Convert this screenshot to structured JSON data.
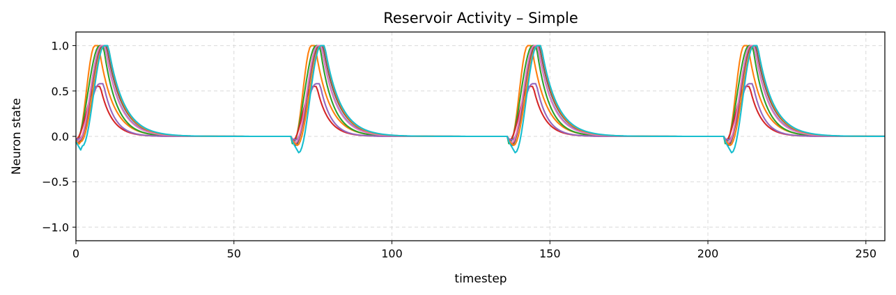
{
  "chart_data": {
    "type": "line",
    "title": "Reservoir Activity – Simple",
    "xlabel": "timestep",
    "ylabel": "Neuron state",
    "xlim": [
      0,
      256
    ],
    "ylim": [
      -1.15,
      1.15
    ],
    "xticks": [
      0,
      50,
      100,
      150,
      200,
      250
    ],
    "yticks": [
      -1.0,
      -0.5,
      0.0,
      0.5,
      1.0
    ],
    "xtick_labels": [
      "0",
      "50",
      "100",
      "150",
      "200",
      "250"
    ],
    "ytick_labels": [
      "−1.0",
      "−0.5",
      "0.0",
      "0.5",
      "1.0"
    ],
    "grid": true,
    "legend": "none",
    "pulse_period": 68.5,
    "series": [
      {
        "color": "#1f77b4",
        "pre_dip": -0.1,
        "rise_start": 1,
        "peak_t": 8.0,
        "peak": 1.0,
        "tau": 4.6
      },
      {
        "color": "#ff7f0e",
        "pre_dip": -0.06,
        "rise_start": 0.5,
        "peak_t": 6.0,
        "peak": 1.0,
        "tau": 4.4
      },
      {
        "color": "#2ca02c",
        "pre_dip": -0.08,
        "rise_start": 0,
        "peak_t": 7.5,
        "peak": 1.0,
        "tau": 4.0
      },
      {
        "color": "#d62728",
        "pre_dip": -0.05,
        "rise_start": 0,
        "peak_t": 6.5,
        "peak": 0.55,
        "tau": 3.6
      },
      {
        "color": "#9467bd",
        "pre_dip": -0.04,
        "rise_start": 1,
        "peak_t": 7.5,
        "peak": 0.58,
        "tau": 3.4
      },
      {
        "color": "#8c564b",
        "pre_dip": -0.09,
        "rise_start": 1,
        "peak_t": 8.5,
        "peak": 1.0,
        "tau": 4.8
      },
      {
        "color": "#e377c2",
        "pre_dip": -0.07,
        "rise_start": 1,
        "peak_t": 8.0,
        "peak": 1.0,
        "tau": 4.5
      },
      {
        "color": "#ff7f0e",
        "pre_dip": -0.1,
        "rise_start": 1.5,
        "peak_t": 9.0,
        "peak": 1.0,
        "tau": 4.7
      },
      {
        "color": "#17becf",
        "pre_dip": -0.18,
        "rise_start": 2,
        "peak_t": 9.0,
        "peak": 1.0,
        "tau": 4.9
      }
    ]
  }
}
